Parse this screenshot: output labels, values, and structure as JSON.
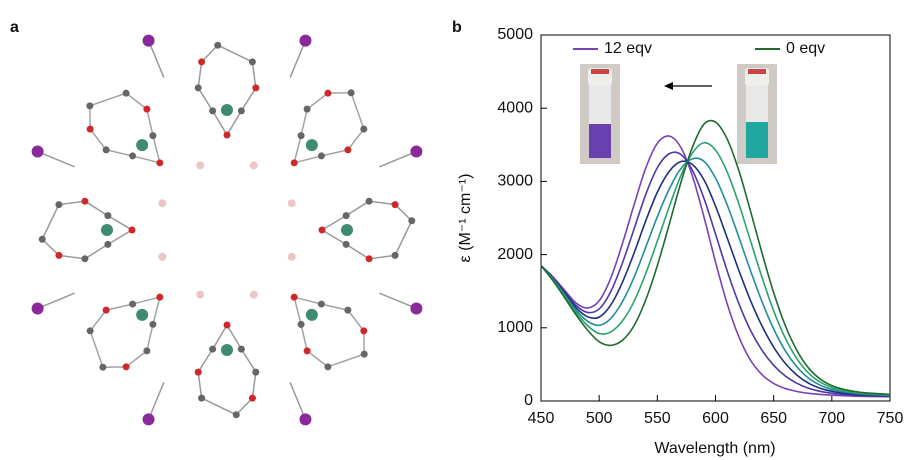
{
  "panel_labels": [
    "a",
    "b"
  ],
  "chart_data": {
    "type": "line",
    "xlabel": "Wavelength (nm)",
    "ylabel": "ε (M⁻¹ cm⁻¹)",
    "x": [
      450,
      460,
      470,
      480,
      490,
      500,
      510,
      520,
      530,
      540,
      550,
      560,
      570,
      580,
      590,
      600,
      610,
      620,
      630,
      640,
      650,
      660,
      670,
      680,
      690,
      700,
      710,
      720,
      730,
      740,
      750
    ],
    "series": [
      {
        "name": "12 eqv",
        "color": "#7b3fb8",
        "values": [
          1850,
          1700,
          1520,
          1340,
          1270,
          1370,
          1680,
          2150,
          2680,
          3180,
          3520,
          3620,
          3470,
          3080,
          2520,
          1900,
          1330,
          880,
          560,
          360,
          240,
          170,
          130,
          105,
          90,
          80,
          72,
          66,
          62,
          60,
          58
        ]
      },
      {
        "color": "#4b3aa8",
        "values": [
          1850,
          1690,
          1500,
          1308,
          1210,
          1258,
          1496,
          1886,
          2350,
          2820,
          3186,
          3376,
          3370,
          3156,
          2772,
          2282,
          1780,
          1334,
          968,
          692,
          488,
          342,
          242,
          174,
          132,
          106,
          90,
          79,
          72,
          68,
          64
        ]
      },
      {
        "color": "#1c2f7a",
        "values": [
          1850,
          1680,
          1480,
          1276,
          1150,
          1146,
          1312,
          1622,
          2020,
          2460,
          2852,
          3132,
          3270,
          3232,
          3024,
          2664,
          2230,
          1788,
          1376,
          1024,
          736,
          514,
          354,
          243,
          174,
          132,
          107,
          92,
          81,
          76,
          71
        ]
      },
      {
        "color": "#1e8f99",
        "values": [
          1850,
          1670,
          1460,
          1244,
          1090,
          1034,
          1128,
          1358,
          1690,
          2100,
          2518,
          2888,
          3170,
          3308,
          3276,
          3046,
          2680,
          2242,
          1784,
          1356,
          984,
          686,
          466,
          312,
          216,
          158,
          125,
          104,
          91,
          84,
          77
        ]
      },
      {
        "color": "#2aa36a",
        "values": [
          1850,
          1660,
          1440,
          1212,
          1030,
          922,
          944,
          1094,
          1360,
          1740,
          2184,
          2644,
          3070,
          3384,
          3528,
          3428,
          3130,
          2696,
          2192,
          1688,
          1232,
          858,
          578,
          381,
          258,
          184,
          142,
          117,
          100,
          92,
          84
        ]
      },
      {
        "name": "0 eqv",
        "color": "#1e6b2e",
        "values": [
          1850,
          1650,
          1420,
          1180,
          970,
          810,
          760,
          830,
          1030,
          1380,
          1850,
          2400,
          2970,
          3460,
          3780,
          3810,
          3580,
          3150,
          2600,
          2020,
          1480,
          1030,
          690,
          450,
          300,
          210,
          160,
          130,
          110,
          100,
          90
        ]
      }
    ],
    "xlim": [
      450,
      750
    ],
    "xticks": [
      450,
      500,
      550,
      600,
      650,
      700,
      750
    ],
    "ylim": [
      0,
      5000
    ],
    "yticks": [
      0,
      1000,
      2000,
      3000,
      4000,
      5000
    ]
  }
}
